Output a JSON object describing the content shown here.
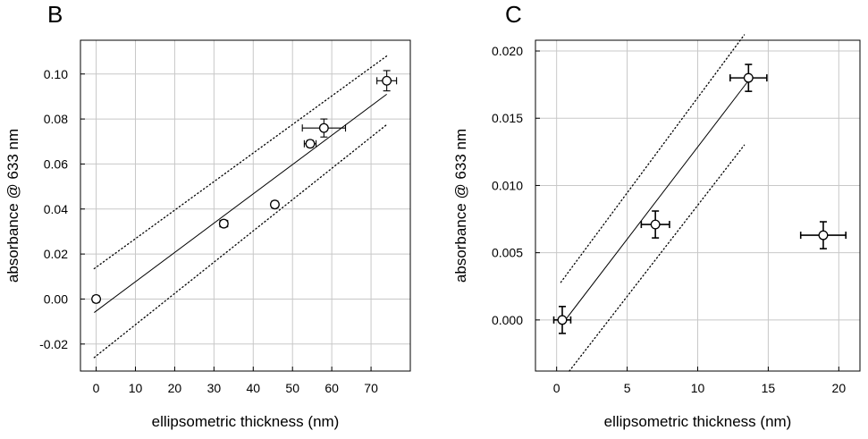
{
  "chart_data": [
    {
      "type": "scatter",
      "panel_label": "B",
      "xlabel": "ellipsometric thickness (nm)",
      "ylabel": "absorbance @ 633 nm",
      "xlim": [
        -4,
        80
      ],
      "ylim": [
        -0.032,
        0.115
      ],
      "grid": true,
      "x_ticks": [
        0,
        10,
        20,
        30,
        40,
        50,
        60,
        70
      ],
      "x_tick_labels": [
        "0",
        "10",
        "20",
        "30",
        "40",
        "50",
        "60",
        "70"
      ],
      "y_ticks": [
        -0.02,
        0.0,
        0.02,
        0.04,
        0.06,
        0.08,
        0.1
      ],
      "y_tick_labels": [
        "-0.02",
        "0.00",
        "0.02",
        "0.04",
        "0.06",
        "0.08",
        "0.10"
      ],
      "points": [
        {
          "x": 0.0,
          "y": 0.0,
          "x_err": 0.8,
          "y_err": 0.0015
        },
        {
          "x": 32.5,
          "y": 0.0335,
          "x_err": 1.0,
          "y_err": 0.0015
        },
        {
          "x": 45.5,
          "y": 0.042,
          "x_err": 0.8,
          "y_err": 0.0015
        },
        {
          "x": 54.5,
          "y": 0.069,
          "x_err": 1.5,
          "y_err": 0.0015
        },
        {
          "x": 58.0,
          "y": 0.076,
          "x_err": 5.5,
          "y_err": 0.004
        },
        {
          "x": 74.0,
          "y": 0.097,
          "x_err": 2.5,
          "y_err": 0.0045
        }
      ],
      "fit_line": {
        "x": [
          -0.5,
          74.0
        ],
        "y": [
          -0.006,
          0.091
        ]
      },
      "confidence_upper": {
        "x": [
          -0.5,
          74.0
        ],
        "y": [
          0.0135,
          0.108
        ]
      },
      "confidence_lower": {
        "x": [
          -0.5,
          74.0
        ],
        "y": [
          -0.026,
          0.0775
        ]
      }
    },
    {
      "type": "scatter",
      "panel_label": "C",
      "xlabel": "ellipsometric thickness (nm)",
      "ylabel": "absorbance @ 633 nm",
      "xlim": [
        -1.5,
        21.5
      ],
      "ylim": [
        -0.0038,
        0.0208
      ],
      "grid": true,
      "x_ticks": [
        0,
        5,
        10,
        15,
        20
      ],
      "x_tick_labels": [
        "0",
        "5",
        "10",
        "15",
        "20"
      ],
      "y_ticks": [
        0.0,
        0.005,
        0.01,
        0.015,
        0.02
      ],
      "y_tick_labels": [
        "0.000",
        "0.005",
        "0.010",
        "0.015",
        "0.020"
      ],
      "points": [
        {
          "x": 0.4,
          "y": 0.0,
          "x_err": 0.6,
          "y_err": 0.001
        },
        {
          "x": 7.0,
          "y": 0.0071,
          "x_err": 1.0,
          "y_err": 0.001
        },
        {
          "x": 13.6,
          "y": 0.018,
          "x_err": 1.3,
          "y_err": 0.001
        },
        {
          "x": 18.9,
          "y": 0.0063,
          "x_err": 1.6,
          "y_err": 0.001
        }
      ],
      "fit_line": {
        "x": [
          0.4,
          13.6
        ],
        "y": [
          -0.0003,
          0.0178
        ]
      },
      "confidence_upper": {
        "x": [
          0.3,
          13.3
        ],
        "y": [
          0.0028,
          0.0212
        ]
      },
      "confidence_lower": {
        "x": [
          0.9,
          13.3
        ],
        "y": [
          -0.0038,
          0.013
        ]
      }
    }
  ]
}
